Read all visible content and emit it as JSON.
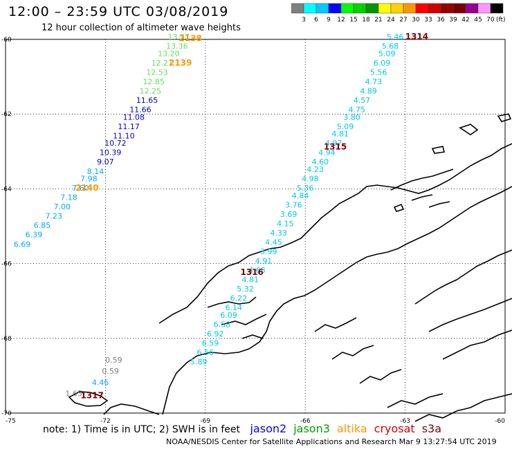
{
  "header": {
    "title": "12:00 – 23:59 UTC 03/08/2019",
    "subtitle": "12 hour collection of altimeter wave heights"
  },
  "legend": {
    "unit": "(ft)",
    "bins": [
      {
        "label": "3",
        "color": "#7f7f7f"
      },
      {
        "label": "6",
        "color": "#00ffff"
      },
      {
        "label": "9",
        "color": "#00c8ff"
      },
      {
        "label": "12",
        "color": "#0000ff"
      },
      {
        "label": "15",
        "color": "#00ff00"
      },
      {
        "label": "18",
        "color": "#00d200"
      },
      {
        "label": "21",
        "color": "#009600"
      },
      {
        "label": "24",
        "color": "#ffff00"
      },
      {
        "label": "27",
        "color": "#ffd200"
      },
      {
        "label": "30",
        "color": "#ff9600"
      },
      {
        "label": "33",
        "color": "#ff0000"
      },
      {
        "label": "36",
        "color": "#d20000"
      },
      {
        "label": "39",
        "color": "#960000"
      },
      {
        "label": "42",
        "color": "#780000"
      },
      {
        "label": "45",
        "color": "#960096"
      },
      {
        "label": "70",
        "color": "#ff96ff"
      },
      {
        "label": "",
        "color": "#000000"
      }
    ]
  },
  "axes": {
    "lat_labels": [
      {
        "label": "-60",
        "lat": -60
      },
      {
        "label": "-62",
        "lat": -62
      },
      {
        "label": "-64",
        "lat": -64
      },
      {
        "label": "-66",
        "lat": -66
      },
      {
        "label": "-68",
        "lat": -68
      },
      {
        "label": "-70",
        "lat": -70
      }
    ],
    "lon_labels": [
      {
        "label": "-75",
        "lon": -75
      },
      {
        "label": "-72",
        "lon": -72
      },
      {
        "label": "-69",
        "lon": -69
      },
      {
        "label": "-66",
        "lon": -66
      },
      {
        "label": "-63",
        "lon": -63
      },
      {
        "label": "-60",
        "lon": -60
      }
    ],
    "lon_range": [
      -75,
      -60
    ],
    "lat_range": [
      -70,
      -60
    ]
  },
  "tracks": [
    {
      "satellite": "altika",
      "color": "#ff9600",
      "time_labels": [
        {
          "label": "2138",
          "lon": -69.45,
          "lat": -60.05
        },
        {
          "label": "2139",
          "lon": -69.75,
          "lat": -60.7
        },
        {
          "label": "2140",
          "lon": -72.55,
          "lat": -64.05
        }
      ],
      "points": [
        {
          "v": "13.37",
          "lon": -69.8,
          "lat": -60.0,
          "color": "#66dd66"
        },
        {
          "v": "13.36",
          "lon": -69.85,
          "lat": -60.25,
          "color": "#66dd66"
        },
        {
          "v": "13.20",
          "lon": -70.1,
          "lat": -60.45,
          "color": "#66dd66"
        },
        {
          "v": "12.21",
          "lon": -70.3,
          "lat": -60.7,
          "color": "#66dd66"
        },
        {
          "v": "12.53",
          "lon": -70.45,
          "lat": -60.95,
          "color": "#66dd66"
        },
        {
          "v": "12.85",
          "lon": -70.55,
          "lat": -61.2,
          "color": "#66dd66"
        },
        {
          "v": "12.25",
          "lon": -70.65,
          "lat": -61.45,
          "color": "#66dd66"
        },
        {
          "v": "11.65",
          "lon": -70.75,
          "lat": -61.7,
          "color": "#0000cc"
        },
        {
          "v": "11.66",
          "lon": -70.95,
          "lat": -61.95,
          "color": "#0000cc"
        },
        {
          "v": "11.08",
          "lon": -71.15,
          "lat": -62.15,
          "color": "#0000cc"
        },
        {
          "v": "11.17",
          "lon": -71.3,
          "lat": -62.4,
          "color": "#0000cc"
        },
        {
          "v": "11.10",
          "lon": -71.45,
          "lat": -62.65,
          "color": "#0000cc"
        },
        {
          "v": "10.72",
          "lon": -71.7,
          "lat": -62.85,
          "color": "#0000cc"
        },
        {
          "v": "10.39",
          "lon": -71.85,
          "lat": -63.1,
          "color": "#0000cc"
        },
        {
          "v": "9.07",
          "lon": -72.0,
          "lat": -63.35,
          "color": "#0000cc"
        },
        {
          "v": "8.14",
          "lon": -72.3,
          "lat": -63.6,
          "color": "#00aaff"
        },
        {
          "v": "7.98",
          "lon": -72.5,
          "lat": -63.8,
          "color": "#00aaff"
        },
        {
          "v": "7.60",
          "lon": -72.75,
          "lat": -64.05,
          "color": "#00aaff"
        },
        {
          "v": "7.18",
          "lon": -73.1,
          "lat": -64.3,
          "color": "#00aaff"
        },
        {
          "v": "7.00",
          "lon": -73.3,
          "lat": -64.55,
          "color": "#00aaff"
        },
        {
          "v": "7.23",
          "lon": -73.55,
          "lat": -64.8,
          "color": "#00aaff"
        },
        {
          "v": "6.85",
          "lon": -73.9,
          "lat": -65.05,
          "color": "#00aaff"
        },
        {
          "v": "6.39",
          "lon": -74.15,
          "lat": -65.3,
          "color": "#00aaff"
        },
        {
          "v": "6.69",
          "lon": -74.5,
          "lat": -65.55,
          "color": "#00aaff"
        }
      ]
    },
    {
      "satellite": "cryosat",
      "color": "#800000",
      "time_labels": [
        {
          "label": "1314",
          "lon": -62.65,
          "lat": -60.0
        },
        {
          "label": "1315",
          "lon": -65.1,
          "lat": -62.95
        },
        {
          "label": "1316",
          "lon": -67.6,
          "lat": -66.3
        },
        {
          "label": "1317",
          "lon": -72.4,
          "lat": -69.6
        }
      ],
      "points": [
        {
          "v": "5.46",
          "lon": -63.3,
          "lat": -60.0
        },
        {
          "v": "5.68",
          "lon": -63.45,
          "lat": -60.25
        },
        {
          "v": "5.09",
          "lon": -63.55,
          "lat": -60.45
        },
        {
          "v": "6.09",
          "lon": -63.7,
          "lat": -60.7
        },
        {
          "v": "5.56",
          "lon": -63.8,
          "lat": -60.95
        },
        {
          "v": "4.73",
          "lon": -63.95,
          "lat": -61.2
        },
        {
          "v": "4.89",
          "lon": -64.1,
          "lat": -61.45
        },
        {
          "v": "4.57",
          "lon": -64.3,
          "lat": -61.7
        },
        {
          "v": "4.75",
          "lon": -64.45,
          "lat": -61.95
        },
        {
          "v": "3.80",
          "lon": -64.6,
          "lat": -62.15
        },
        {
          "v": "5.09",
          "lon": -64.8,
          "lat": -62.4
        },
        {
          "v": "4.81",
          "lon": -64.95,
          "lat": -62.6
        },
        {
          "v": "4.97",
          "lon": -65.15,
          "lat": -62.85
        },
        {
          "v": "4.94",
          "lon": -65.35,
          "lat": -63.1
        },
        {
          "v": "4.60",
          "lon": -65.55,
          "lat": -63.35
        },
        {
          "v": "4.23",
          "lon": -65.7,
          "lat": -63.55
        },
        {
          "v": "4.98",
          "lon": -65.85,
          "lat": -63.8
        },
        {
          "v": "5.36",
          "lon": -66.0,
          "lat": -64.05
        },
        {
          "v": "4.84",
          "lon": -66.15,
          "lat": -64.25
        },
        {
          "v": "3.76",
          "lon": -66.35,
          "lat": -64.5
        },
        {
          "v": "3.69",
          "lon": -66.5,
          "lat": -64.75
        },
        {
          "v": "4.15",
          "lon": -66.6,
          "lat": -65.0
        },
        {
          "v": "4.33",
          "lon": -66.8,
          "lat": -65.25
        },
        {
          "v": "4.45",
          "lon": -66.95,
          "lat": -65.5
        },
        {
          "v": "3.99",
          "lon": -67.1,
          "lat": -65.75
        },
        {
          "v": "4.91",
          "lon": -67.25,
          "lat": -66.0
        },
        {
          "v": "4.68",
          "lon": -67.45,
          "lat": -66.25
        },
        {
          "v": "4.81",
          "lon": -67.65,
          "lat": -66.5
        },
        {
          "v": "5.32",
          "lon": -67.8,
          "lat": -66.75
        },
        {
          "v": "6.22",
          "lon": -68.0,
          "lat": -67.0
        },
        {
          "v": "6.14",
          "lon": -68.15,
          "lat": -67.25
        },
        {
          "v": "6.09",
          "lon": -68.3,
          "lat": -67.45
        },
        {
          "v": "6.58",
          "lon": -68.5,
          "lat": -67.7
        },
        {
          "v": "6.92",
          "lon": -68.7,
          "lat": -67.95
        },
        {
          "v": "6.59",
          "lon": -68.85,
          "lat": -68.2
        },
        {
          "v": "6.56",
          "lon": -69.0,
          "lat": -68.45
        },
        {
          "v": "5.89",
          "lon": -69.2,
          "lat": -68.7
        },
        {
          "v": "4.46",
          "lon": -72.15,
          "lat": -69.25,
          "color": "#00aaff"
        },
        {
          "v": "1.65",
          "lon": -72.95,
          "lat": -69.55,
          "color": "#7f7f7f"
        }
      ]
    },
    {
      "satellite": "s3a",
      "color": "#7f7f7f",
      "time_labels": [],
      "points": [
        {
          "v": "0.59",
          "lon": -71.75,
          "lat": -68.65,
          "color": "#7f7f7f"
        },
        {
          "v": "0.59",
          "lon": -71.85,
          "lat": -68.95,
          "color": "#7f7f7f"
        }
      ]
    }
  ],
  "footer": {
    "note": "note: 1) Time is in UTC; 2) SWH is in feet",
    "satellites": [
      {
        "name": "jason2",
        "color": "#0000ff"
      },
      {
        "name": "jason3",
        "color": "#00a000"
      },
      {
        "name": "altika",
        "color": "#ff9600"
      },
      {
        "name": "cryosat",
        "color": "#d20000"
      },
      {
        "name": "s3a",
        "color": "#7f0000"
      }
    ],
    "credit": "NOAA/NESDIS Center for Satellite Applications and Research    Mar  9 13:27:54 UTC 2019"
  }
}
